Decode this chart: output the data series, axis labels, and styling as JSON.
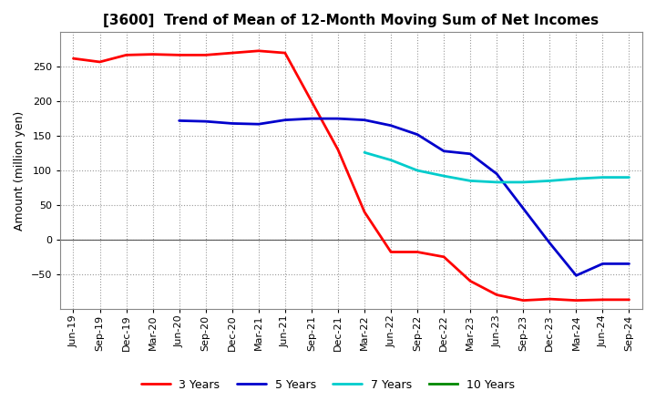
{
  "title": "[3600]  Trend of Mean of 12-Month Moving Sum of Net Incomes",
  "ylabel": "Amount (million yen)",
  "background_color": "#ffffff",
  "plot_bg_color": "#ffffff",
  "grid_color": "#aaaaaa",
  "x_labels": [
    "Jun-19",
    "Sep-19",
    "Dec-19",
    "Mar-20",
    "Jun-20",
    "Sep-20",
    "Dec-20",
    "Mar-21",
    "Jun-21",
    "Sep-21",
    "Dec-21",
    "Mar-22",
    "Jun-22",
    "Sep-22",
    "Dec-22",
    "Mar-23",
    "Jun-23",
    "Sep-23",
    "Dec-23",
    "Mar-24",
    "Jun-24",
    "Sep-24"
  ],
  "ylim": [
    -100,
    300
  ],
  "yticks": [
    -50,
    0,
    50,
    100,
    150,
    200,
    250
  ],
  "series": [
    {
      "label": "3 Years",
      "color": "#ff0000",
      "data_x": [
        0,
        1,
        2,
        3,
        4,
        5,
        6,
        7,
        8,
        9,
        10,
        11,
        12,
        13,
        14,
        15,
        16,
        17,
        18,
        19,
        20,
        21
      ],
      "data_y": [
        262,
        257,
        267,
        268,
        267,
        267,
        270,
        273,
        270,
        200,
        130,
        40,
        -18,
        -18,
        -25,
        -60,
        -80,
        -88,
        -86,
        -88,
        -87,
        -87
      ]
    },
    {
      "label": "5 Years",
      "color": "#0000cc",
      "data_x": [
        4,
        5,
        6,
        7,
        8,
        9,
        10,
        11,
        12,
        13,
        14,
        15,
        16,
        17,
        18,
        19,
        20,
        21
      ],
      "data_y": [
        172,
        171,
        168,
        167,
        173,
        175,
        175,
        173,
        165,
        152,
        128,
        124,
        95,
        45,
        -5,
        -52,
        -35,
        -35
      ]
    },
    {
      "label": "7 Years",
      "color": "#00cccc",
      "data_x": [
        11,
        12,
        13,
        14,
        15,
        16,
        17,
        18,
        19,
        20,
        21
      ],
      "data_y": [
        126,
        115,
        100,
        92,
        85,
        83,
        83,
        85,
        88,
        90,
        90
      ]
    },
    {
      "label": "10 Years",
      "color": "#008800",
      "data_x": [],
      "data_y": []
    }
  ],
  "title_fontsize": 11,
  "axis_fontsize": 9,
  "tick_fontsize": 8
}
